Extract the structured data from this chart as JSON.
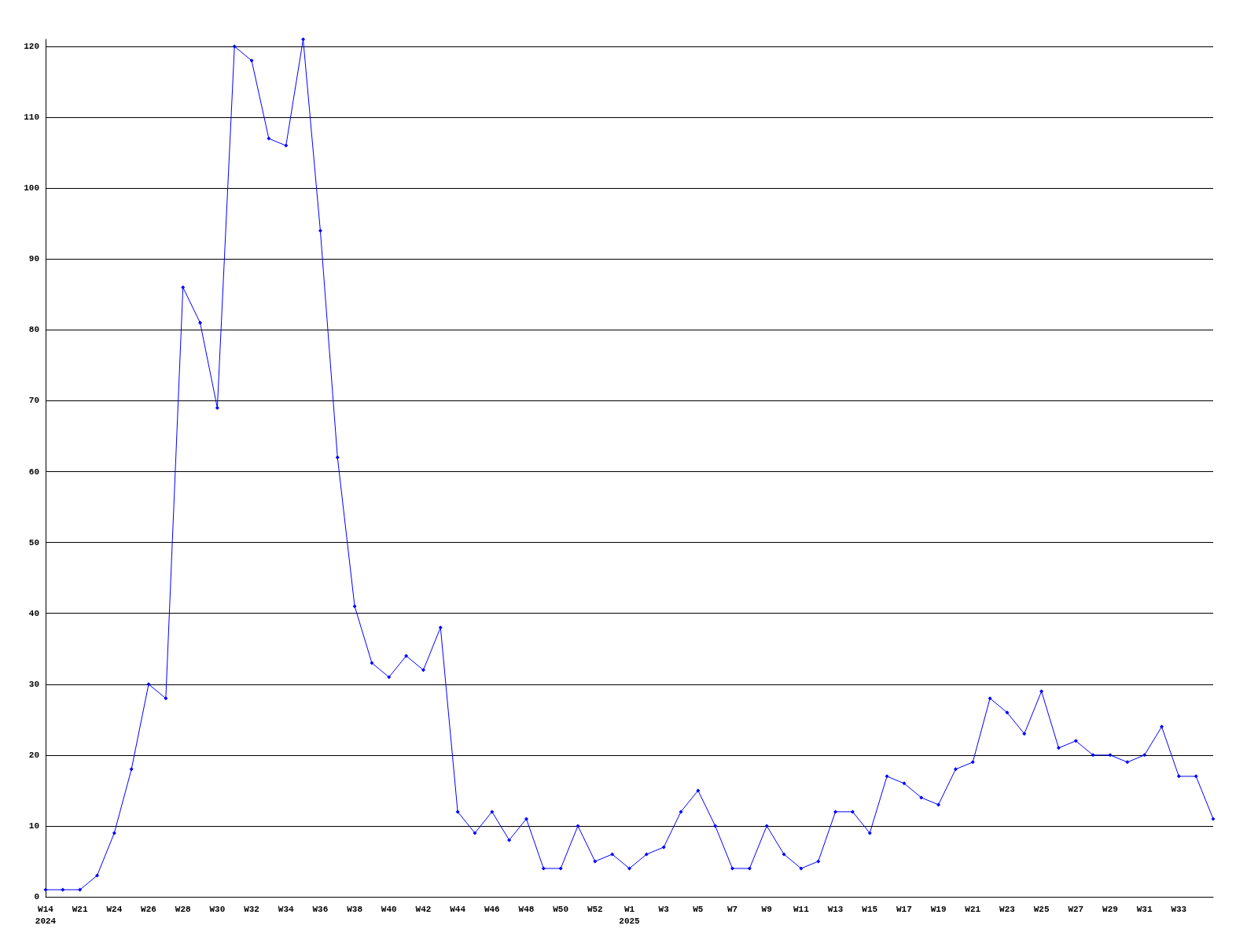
{
  "chart_data": {
    "type": "line",
    "categories": [
      "W14\n2024",
      null,
      "W21",
      null,
      "W24",
      null,
      "W26",
      null,
      "W28",
      null,
      "W30",
      null,
      "W32",
      null,
      "W34",
      null,
      "W36",
      null,
      "W38",
      null,
      "W40",
      null,
      "W42",
      null,
      "W44",
      null,
      "W46",
      null,
      "W48",
      null,
      "W50",
      null,
      "W52",
      null,
      "W1\n2025",
      null,
      "W3",
      null,
      "W5",
      null,
      "W7",
      null,
      "W9",
      null,
      "W11",
      null,
      "W13",
      null,
      "W15",
      null,
      "W17",
      null,
      "W19",
      null,
      "W21",
      null,
      "W23",
      null,
      "W25",
      null,
      "W27",
      null,
      "W29",
      null,
      "W31",
      null,
      "W33",
      null,
      null
    ],
    "series": [
      {
        "color": "#0000ff",
        "values": [
          1,
          1,
          1,
          3,
          9,
          18,
          30,
          28,
          86,
          81,
          69,
          120,
          118,
          107,
          106,
          121,
          94,
          62,
          41,
          33,
          31,
          34,
          32,
          38,
          12,
          9,
          12,
          8,
          11,
          4,
          4,
          10,
          5,
          6,
          4,
          6,
          7,
          12,
          15,
          10,
          4,
          4,
          10,
          6,
          4,
          5,
          12,
          12,
          9,
          17,
          16,
          14,
          13,
          18,
          19,
          28,
          26,
          23,
          29,
          21,
          22,
          20,
          20,
          19,
          20,
          24,
          17,
          17,
          11
        ]
      }
    ],
    "ylim": [
      0,
      121
    ],
    "yticks": [
      0,
      10,
      20,
      30,
      40,
      50,
      60,
      70,
      80,
      90,
      100,
      110,
      120
    ],
    "grid": "y",
    "marker": "diamond",
    "line_style": "solid"
  }
}
